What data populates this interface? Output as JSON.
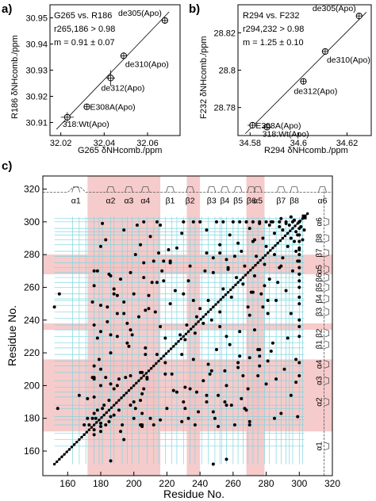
{
  "panels": {
    "a": "a)",
    "b": "b)",
    "c": "c)"
  },
  "chart_data": [
    {
      "type": "scatter",
      "title": "G265 vs. R186",
      "annotations": [
        "r265,186 > 0.98",
        "m = 0.91 ± 0.07"
      ],
      "xlabel": "G265 δNHcomb./ppm",
      "ylabel": "R186 δNHcomb./ppm",
      "xlim": [
        32.015,
        32.075
      ],
      "ylim": [
        30.905,
        30.955
      ],
      "xticks": [
        32.02,
        32.04,
        32.06
      ],
      "yticks": [
        30.91,
        30.92,
        30.93,
        30.94,
        30.95
      ],
      "points": [
        {
          "label": "318:Wt(Apo)",
          "x": 32.023,
          "y": 30.912,
          "xerr": 0.003,
          "yerr": 0.002
        },
        {
          "label": "E308A(Apo)",
          "x": 32.032,
          "y": 30.916,
          "xerr": 0.0,
          "yerr": 0.0
        },
        {
          "label": "de312(Apo)",
          "x": 32.043,
          "y": 30.927,
          "xerr": 0.002,
          "yerr": 0.003
        },
        {
          "label": "de310(Apo)",
          "x": 32.049,
          "y": 30.9355,
          "xerr": 0.0,
          "yerr": 0.0
        },
        {
          "label": "de305(Apo)",
          "x": 32.068,
          "y": 30.949,
          "xerr": 0.0,
          "yerr": 0.0
        }
      ],
      "fit_line": {
        "x": [
          32.018,
          32.07
        ],
        "y": [
          30.9074,
          30.9523
        ]
      }
    },
    {
      "type": "scatter",
      "title": "R294 vs. F232",
      "annotations": [
        "r294,232 > 0.98",
        "m = 1.25 ± 0.10"
      ],
      "xlabel": "R294 δNHcomb./ppm",
      "ylabel": "F232 δNHcomb./ppm",
      "xlim": [
        34.575,
        34.63
      ],
      "ylim": [
        28.765,
        28.835
      ],
      "xticks": [
        34.58,
        34.6,
        34.62
      ],
      "yticks": [
        28.78,
        28.8,
        28.82
      ],
      "points": [
        {
          "label": "318:Wt(Apo)",
          "x": 34.587,
          "y": 28.7695,
          "xerr": 0.002,
          "yerr": 0.001
        },
        {
          "label": "E308A(Apo)",
          "x": 34.581,
          "y": 28.7705,
          "xerr": 0.002,
          "yerr": 0.0
        },
        {
          "label": "de312(Apo)",
          "x": 34.602,
          "y": 28.794,
          "xerr": 0.0,
          "yerr": 0.0
        },
        {
          "label": "de310(Apo)",
          "x": 34.611,
          "y": 28.81,
          "xerr": 0.0,
          "yerr": 0.0
        },
        {
          "label": "de305(Apo)",
          "x": 34.625,
          "y": 28.829,
          "xerr": 0.0,
          "yerr": 0.0
        }
      ],
      "fit_line": {
        "x": [
          34.578,
          34.628
        ],
        "y": [
          28.766,
          28.831
        ]
      }
    },
    {
      "type": "scatter",
      "xlabel": "Residue No.",
      "ylabel": "Residue No.",
      "xlim": [
        145,
        320
      ],
      "ylim": [
        145,
        328
      ],
      "xticks": [
        160,
        180,
        200,
        220,
        240,
        260,
        280,
        300,
        320
      ],
      "yticks": [
        160,
        180,
        200,
        220,
        240,
        260,
        280,
        300,
        320
      ],
      "pink_bands_x": [
        [
          172,
          216
        ],
        [
          232,
          240
        ],
        [
          268,
          279
        ]
      ],
      "pink_bands_y": [
        [
          172,
          216
        ],
        [
          234,
          238
        ],
        [
          268,
          280
        ]
      ],
      "cyan_lines": [
        163,
        167,
        171,
        176,
        179,
        181,
        186,
        188,
        193,
        196,
        199,
        203,
        208,
        212,
        215,
        219,
        223,
        226,
        230,
        234,
        237,
        241,
        245,
        249,
        252,
        253,
        256,
        260,
        263,
        266,
        269,
        272,
        275,
        279,
        282,
        286,
        289,
        292,
        294,
        296,
        300,
        302
      ],
      "cyan_range": [
        152,
        303
      ],
      "diagonal": [
        152,
        305
      ],
      "secondary_structure": {
        "x_axis": [
          {
            "label": "α1",
            "center": 165
          },
          {
            "label": "α2",
            "center": 186
          },
          {
            "label": "α3",
            "center": 197
          },
          {
            "label": "α4",
            "center": 207
          },
          {
            "label": "β1",
            "center": 222
          },
          {
            "label": "β2",
            "center": 234
          },
          {
            "label": "β3",
            "center": 247
          },
          {
            "label": "β4",
            "center": 255
          },
          {
            "label": "β5",
            "center": 263
          },
          {
            "label": "β6",
            "center": 271
          },
          {
            "label": "α5",
            "center": 275
          },
          {
            "label": "β7",
            "center": 289
          },
          {
            "label": "β8",
            "center": 297
          },
          {
            "label": "α6",
            "center": 314
          }
        ],
        "y_axis": [
          {
            "label": "α1",
            "center": 163
          },
          {
            "label": "α2",
            "center": 190
          },
          {
            "label": "α3",
            "center": 203
          },
          {
            "label": "α4",
            "center": 213
          },
          {
            "label": "β1",
            "center": 225
          },
          {
            "label": "β2",
            "center": 232
          },
          {
            "label": "β3",
            "center": 245
          },
          {
            "label": "β4",
            "center": 253
          },
          {
            "label": "β5",
            "center": 260
          },
          {
            "label": "β6",
            "center": 266
          },
          {
            "label": "α5",
            "center": 271
          },
          {
            "label": "β7",
            "center": 281
          },
          {
            "label": "β8",
            "center": 290
          },
          {
            "label": "α6",
            "center": 300
          }
        ]
      },
      "contacts": [
        [
          152,
          248
        ],
        [
          155,
          256
        ],
        [
          154,
          186
        ],
        [
          167,
          194
        ],
        [
          170,
          176
        ],
        [
          172,
          180
        ],
        [
          172,
          192
        ],
        [
          173,
          176
        ],
        [
          175,
          180
        ],
        [
          175,
          205
        ],
        [
          176,
          183
        ],
        [
          176,
          205
        ],
        [
          177,
          180
        ],
        [
          178,
          185
        ],
        [
          179,
          216
        ],
        [
          180,
          233
        ],
        [
          181,
          186
        ],
        [
          182,
          188
        ],
        [
          183,
          205
        ],
        [
          185,
          191
        ],
        [
          188,
          198
        ],
        [
          190,
          200
        ],
        [
          191,
          204
        ],
        [
          193,
          176
        ],
        [
          195,
          205
        ],
        [
          198,
          206
        ],
        [
          200,
          180
        ],
        [
          201,
          186
        ],
        [
          204,
          176
        ],
        [
          205,
          208
        ],
        [
          208,
          204
        ],
        [
          210,
          180
        ],
        [
          212,
          176
        ],
        [
          214,
          219
        ],
        [
          216,
          236
        ],
        [
          219,
          229
        ],
        [
          222,
          250
        ],
        [
          225,
          258
        ],
        [
          228,
          231
        ],
        [
          230,
          256
        ],
        [
          232,
          237
        ],
        [
          233,
          264
        ],
        [
          236,
          252
        ],
        [
          238,
          242
        ],
        [
          240,
          247
        ],
        [
          243,
          270
        ],
        [
          245,
          252
        ],
        [
          248,
          278
        ],
        [
          252,
          281
        ],
        [
          254,
          259
        ],
        [
          257,
          272
        ],
        [
          258,
          292
        ],
        [
          262,
          266
        ],
        [
          265,
          282
        ],
        [
          267,
          273
        ],
        [
          270,
          296
        ],
        [
          272,
          288
        ],
        [
          274,
          279
        ],
        [
          276,
          299
        ],
        [
          278,
          290
        ],
        [
          280,
          285
        ],
        [
          283,
          300
        ],
        [
          285,
          293
        ],
        [
          288,
          297
        ],
        [
          290,
          295
        ],
        [
          292,
          299
        ],
        [
          294,
          298
        ],
        [
          297,
          301
        ],
        [
          186,
          267
        ],
        [
          188,
          256
        ],
        [
          192,
          265
        ],
        [
          198,
          269
        ],
        [
          201,
          280
        ],
        [
          204,
          286
        ],
        [
          206,
          275
        ],
        [
          211,
          263
        ],
        [
          178,
          270
        ],
        [
          175,
          251
        ],
        [
          181,
          299
        ],
        [
          183,
          289
        ],
        [
          190,
          255
        ],
        [
          194,
          244
        ],
        [
          197,
          224
        ],
        [
          199,
          231
        ],
        [
          207,
          219
        ],
        [
          209,
          247
        ],
        [
          213,
          245
        ],
        [
          215,
          281
        ],
        [
          217,
          270
        ],
        [
          218,
          264
        ],
        [
          221,
          283
        ],
        [
          223,
          207
        ],
        [
          226,
          196
        ],
        [
          229,
          178
        ],
        [
          231,
          186
        ],
        [
          234,
          198
        ],
        [
          237,
          176
        ],
        [
          239,
          184
        ],
        [
          242,
          203
        ],
        [
          244,
          190
        ],
        [
          246,
          207
        ],
        [
          249,
          180
        ],
        [
          251,
          194
        ],
        [
          255,
          209
        ],
        [
          256,
          200
        ],
        [
          259,
          188
        ],
        [
          261,
          176
        ],
        [
          263,
          214
        ],
        [
          266,
          206
        ],
        [
          268,
          185
        ],
        [
          269,
          248
        ],
        [
          271,
          257
        ],
        [
          273,
          234
        ],
        [
          275,
          222
        ],
        [
          277,
          256
        ],
        [
          279,
          261
        ],
        [
          281,
          244
        ],
        [
          284,
          226
        ],
        [
          286,
          252
        ],
        [
          287,
          263
        ],
        [
          289,
          273
        ],
        [
          291,
          210
        ],
        [
          293,
          229
        ],
        [
          295,
          194
        ],
        [
          298,
          282
        ],
        [
          300,
          268
        ],
        [
          302,
          289
        ],
        [
          303,
          295
        ],
        [
          176,
          270
        ],
        [
          180,
          285
        ],
        [
          184,
          248
        ],
        [
          186,
          220
        ],
        [
          190,
          230
        ],
        [
          196,
          238
        ],
        [
          202,
          298
        ],
        [
          206,
          300
        ],
        [
          212,
          276
        ],
        [
          214,
          300
        ],
        [
          216,
          298
        ],
        [
          218,
          276
        ],
        [
          222,
          276
        ],
        [
          230,
          300
        ],
        [
          236,
          300
        ],
        [
          240,
          300
        ],
        [
          244,
          295
        ],
        [
          250,
          300
        ],
        [
          254,
          300
        ],
        [
          260,
          300
        ],
        [
          264,
          300
        ],
        [
          268,
          300
        ],
        [
          272,
          300
        ],
        [
          276,
          300
        ],
        [
          280,
          300
        ],
        [
          284,
          300
        ],
        [
          288,
          300
        ],
        [
          292,
          300
        ],
        [
          296,
          300
        ],
        [
          300,
          300
        ]
      ]
    }
  ]
}
